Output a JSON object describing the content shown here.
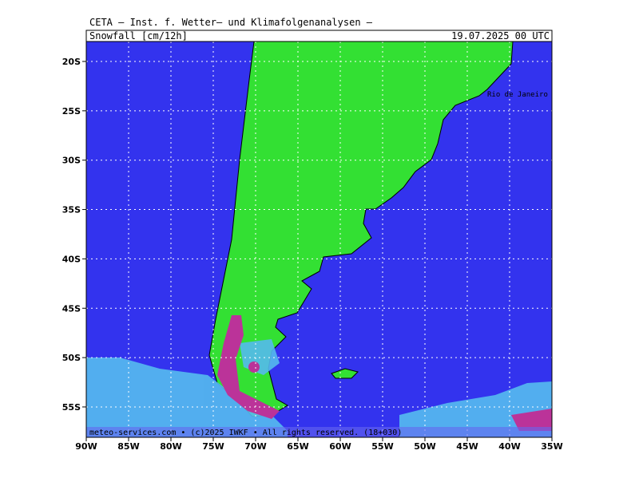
{
  "header": {
    "institute": "CETA — Inst. f. Wetter— und Klimafolgenanalysen —",
    "title": "Snowfall [cm/12h]",
    "timestamp": "19.07.2025 00 UTC"
  },
  "map": {
    "city_label": "Rio de Janeiro",
    "lat_ticks": [
      {
        "value": -20,
        "label": "20S"
      },
      {
        "value": -25,
        "label": "25S"
      },
      {
        "value": -30,
        "label": "30S"
      },
      {
        "value": -35,
        "label": "35S"
      },
      {
        "value": -40,
        "label": "40S"
      },
      {
        "value": -45,
        "label": "45S"
      },
      {
        "value": -50,
        "label": "50S"
      },
      {
        "value": -55,
        "label": "55S"
      }
    ],
    "lon_ticks": [
      {
        "value": -90,
        "label": "90W"
      },
      {
        "value": -85,
        "label": "85W"
      },
      {
        "value": -80,
        "label": "80W"
      },
      {
        "value": -75,
        "label": "75W"
      },
      {
        "value": -70,
        "label": "70W"
      },
      {
        "value": -65,
        "label": "65W"
      },
      {
        "value": -60,
        "label": "60W"
      },
      {
        "value": -55,
        "label": "55W"
      },
      {
        "value": -50,
        "label": "50W"
      },
      {
        "value": -45,
        "label": "45W"
      },
      {
        "value": -40,
        "label": "40W"
      },
      {
        "value": -35,
        "label": "35W"
      }
    ]
  },
  "footer": "meteo-services.com • (c)2025 IWKF • All rights reserved. (18+030)"
}
